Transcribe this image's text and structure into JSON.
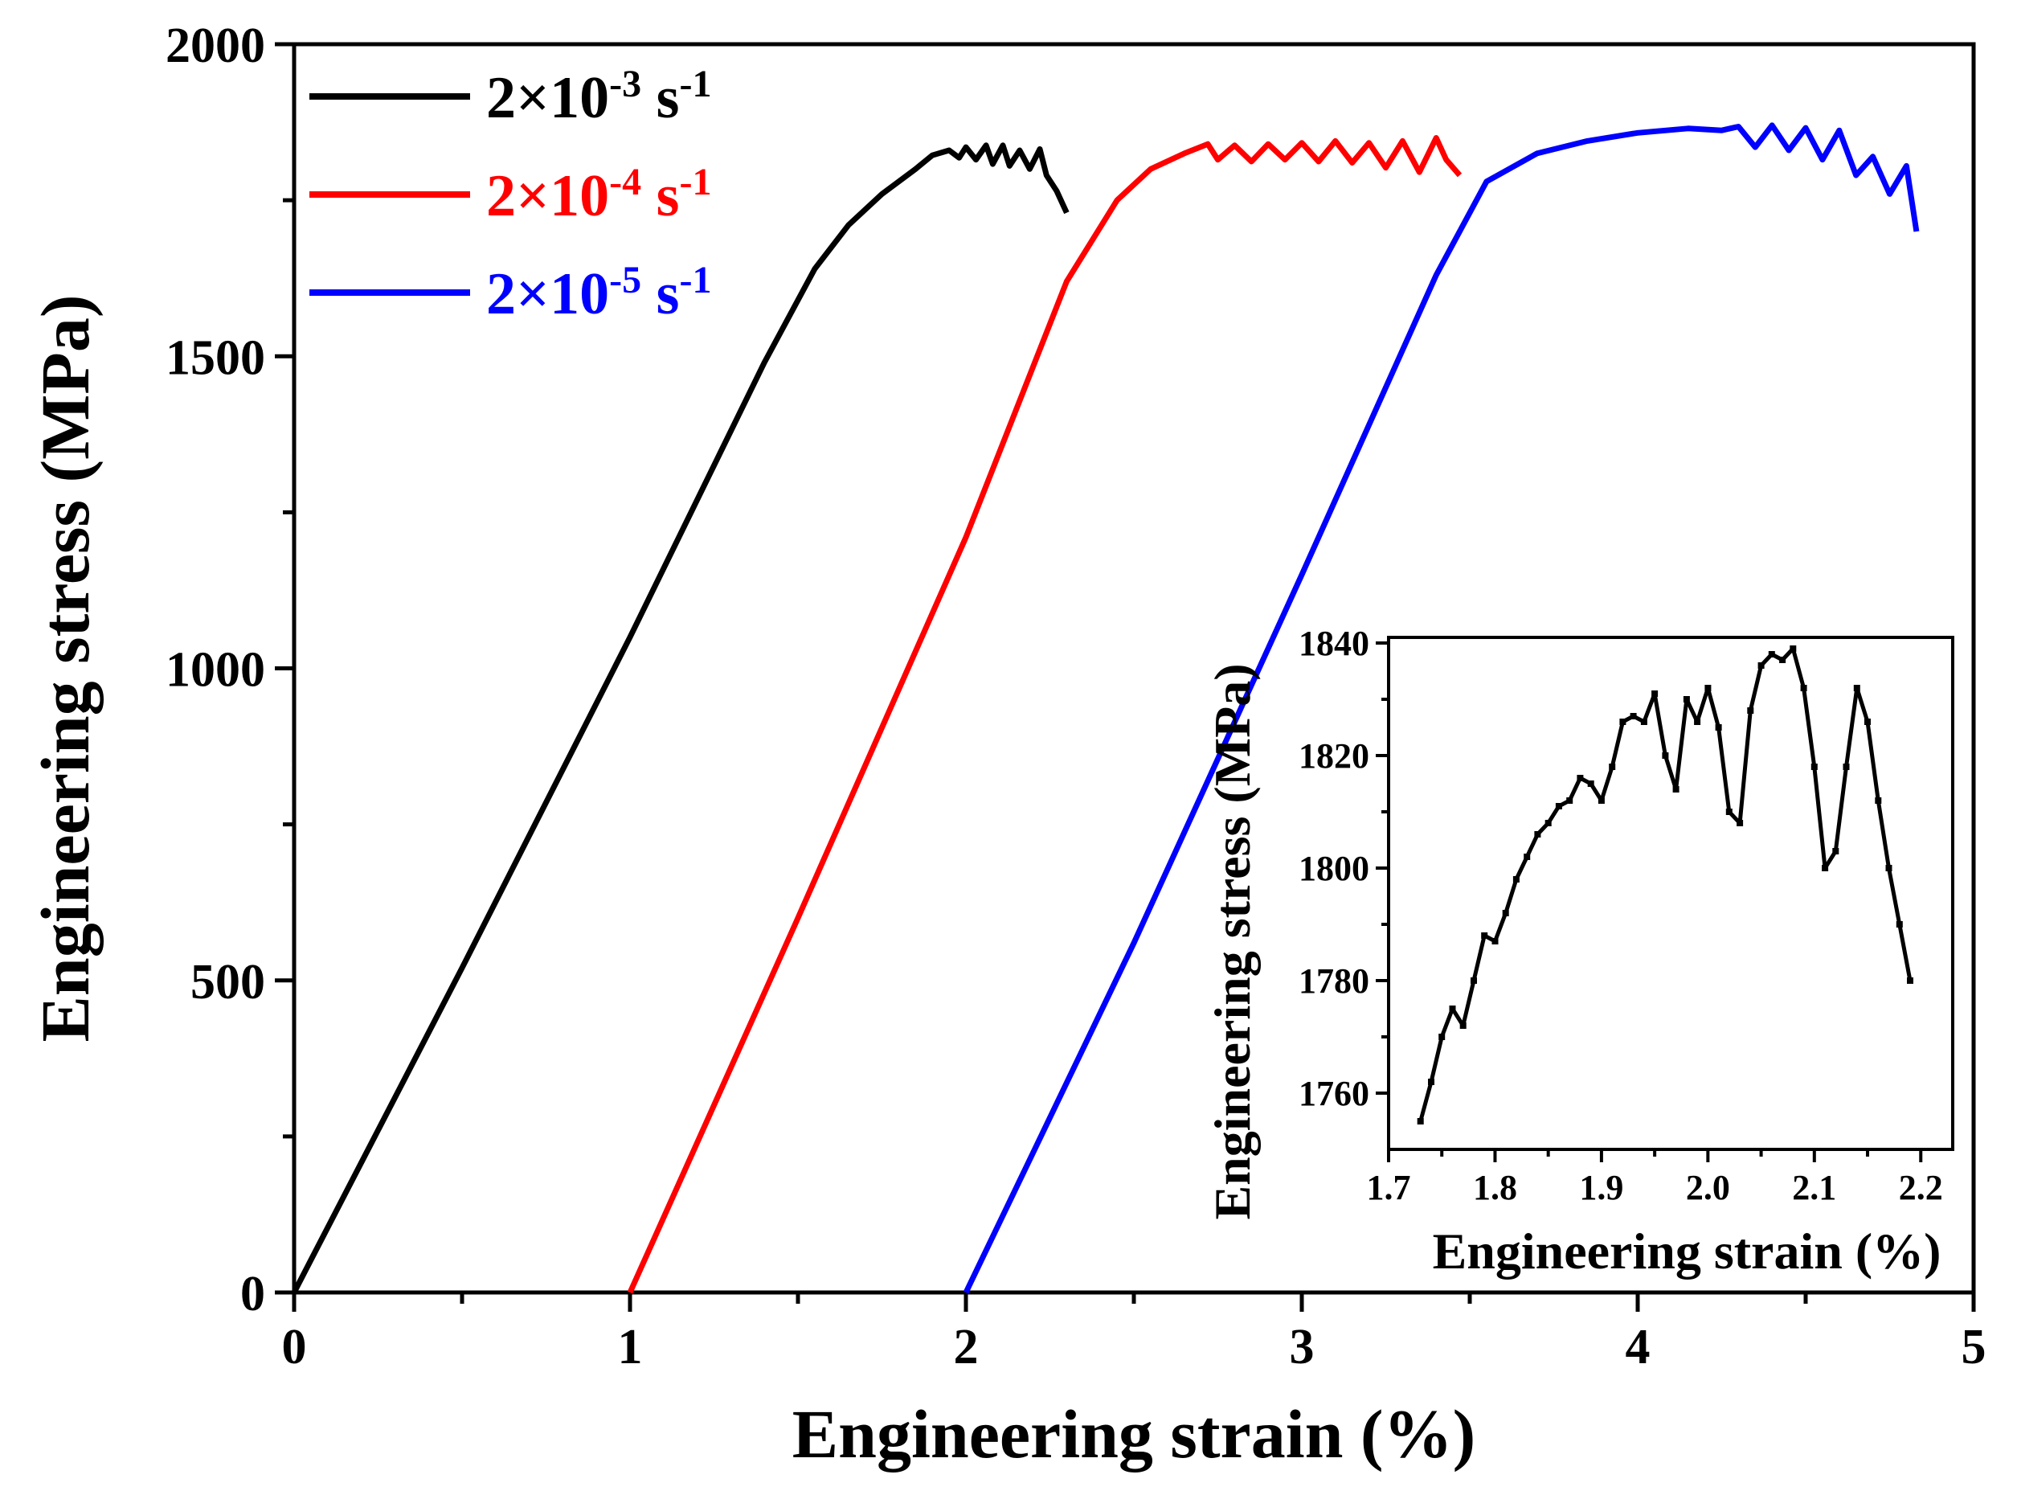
{
  "chart_data": [
    {
      "type": "line",
      "xlabel": "Engineering strain (%)",
      "ylabel": "Engineering stress (MPa)",
      "xlim": [
        0,
        5
      ],
      "ylim": [
        0,
        2000
      ],
      "xticks": [
        "0",
        "1",
        "2",
        "3",
        "4",
        "5"
      ],
      "yticks": [
        "0",
        "500",
        "1000",
        "1500",
        "2000"
      ],
      "grid": false,
      "legend_position": "top-left",
      "series": [
        {
          "name": "2×10^-3 s^-1",
          "legend": {
            "base": "2×10",
            "exp": "-3",
            "unit": " s",
            "unit_exp": "-1"
          },
          "color": "#000000",
          "x": [
            0,
            0.5,
            1.0,
            1.4,
            1.55,
            1.65,
            1.75,
            1.85,
            1.9,
            1.95,
            1.98,
            2.0,
            2.03,
            2.06,
            2.08,
            2.11,
            2.13,
            2.16,
            2.19,
            2.22,
            2.24,
            2.27,
            2.3
          ],
          "y": [
            0,
            520,
            1050,
            1490,
            1640,
            1710,
            1760,
            1800,
            1822,
            1830,
            1818,
            1835,
            1815,
            1838,
            1808,
            1838,
            1805,
            1830,
            1800,
            1832,
            1790,
            1765,
            1730
          ]
        },
        {
          "name": "2×10^-4 s^-1",
          "legend": {
            "base": "2×10",
            "exp": "-4",
            "unit": " s",
            "unit_exp": "-1"
          },
          "color": "#ff0000",
          "x": [
            1.0,
            1.5,
            2.0,
            2.3,
            2.45,
            2.55,
            2.65,
            2.72,
            2.75,
            2.8,
            2.85,
            2.9,
            2.95,
            3.0,
            3.05,
            3.1,
            3.15,
            3.2,
            3.25,
            3.3,
            3.35,
            3.4,
            3.43,
            3.47
          ],
          "y": [
            0,
            600,
            1210,
            1620,
            1750,
            1800,
            1825,
            1840,
            1815,
            1838,
            1812,
            1840,
            1815,
            1842,
            1812,
            1845,
            1810,
            1842,
            1802,
            1845,
            1795,
            1850,
            1815,
            1790
          ]
        },
        {
          "name": "2×10^-5 s^-1",
          "legend": {
            "base": "2×10",
            "exp": "-5",
            "unit": " s",
            "unit_exp": "-1"
          },
          "color": "#0000ff",
          "x": [
            2.0,
            2.5,
            3.0,
            3.4,
            3.55,
            3.7,
            3.85,
            4.0,
            4.15,
            4.25,
            4.3,
            4.35,
            4.4,
            4.45,
            4.5,
            4.55,
            4.6,
            4.65,
            4.7,
            4.75,
            4.8,
            4.83
          ],
          "y": [
            0,
            560,
            1150,
            1630,
            1780,
            1825,
            1845,
            1858,
            1865,
            1862,
            1868,
            1835,
            1870,
            1830,
            1866,
            1815,
            1862,
            1790,
            1820,
            1760,
            1805,
            1700
          ]
        }
      ]
    },
    {
      "type": "line",
      "xlabel": "Engineering strain (%)",
      "ylabel": "Engineering stress (MPa)",
      "xlim": [
        1.7,
        2.23
      ],
      "ylim": [
        1750,
        1841
      ],
      "xticks": [
        "1.7",
        "1.8",
        "1.9",
        "2.0",
        "2.1",
        "2.2"
      ],
      "yticks": [
        "1760",
        "1780",
        "1800",
        "1820",
        "1840"
      ],
      "grid": false,
      "series": [
        {
          "color": "#000000",
          "x": [
            1.73,
            1.74,
            1.75,
            1.76,
            1.77,
            1.78,
            1.79,
            1.8,
            1.81,
            1.82,
            1.83,
            1.84,
            1.85,
            1.86,
            1.87,
            1.88,
            1.89,
            1.9,
            1.91,
            1.92,
            1.93,
            1.94,
            1.95,
            1.96,
            1.97,
            1.98,
            1.99,
            2.0,
            2.01,
            2.02,
            2.03,
            2.04,
            2.05,
            2.06,
            2.07,
            2.08,
            2.09,
            2.1,
            2.11,
            2.12,
            2.13,
            2.14,
            2.15,
            2.16,
            2.17,
            2.18,
            2.19
          ],
          "y": [
            1755,
            1762,
            1770,
            1775,
            1772,
            1780,
            1788,
            1787,
            1792,
            1798,
            1802,
            1806,
            1808,
            1811,
            1812,
            1816,
            1815,
            1812,
            1818,
            1826,
            1827,
            1826,
            1831,
            1820,
            1814,
            1830,
            1826,
            1832,
            1825,
            1810,
            1808,
            1828,
            1836,
            1838,
            1837,
            1839,
            1832,
            1818,
            1800,
            1803,
            1818,
            1832,
            1826,
            1812,
            1800,
            1790,
            1780
          ]
        }
      ]
    }
  ]
}
